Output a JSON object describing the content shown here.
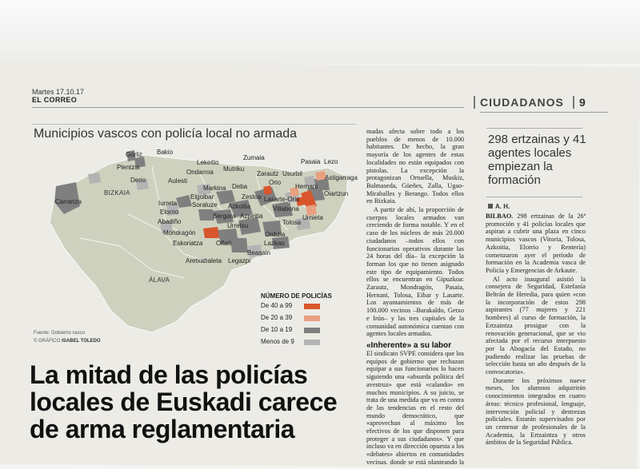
{
  "header": {
    "date": "Martes 17.10.17",
    "publication": "EL CORREO",
    "section": "CIUDADANOS",
    "page": "9"
  },
  "map": {
    "title": "Municipios vascos con policía local no armada",
    "regions": [
      "BIZKAIA",
      "ÁLAVA"
    ],
    "places": [
      "Gorliz",
      "Bakio",
      "Plentzia",
      "Derio",
      "Aulesti",
      "Lekeitio",
      "Zumaia",
      "Pasaia",
      "Lezo",
      "Mutriku",
      "Ondarroa",
      "Zarautz",
      "Usurbil",
      "Astigarraga",
      "Orio",
      "Carranza",
      "Markina",
      "Deba",
      "Hernani",
      "Oiartzun",
      "Elgoibar",
      "Zestoa",
      "Lasarte-Oria",
      "Iurreta",
      "Soraluze",
      "Azkoitia",
      "Villabona",
      "Elorrio",
      "Bergara",
      "Azpeitia",
      "Urnieta",
      "Abadiño",
      "Urretxu",
      "Tolosa",
      "Mondragón",
      "Ordizia",
      "Eskoriatza",
      "Oñati",
      "Lazkao",
      "Beasain",
      "Aretxabaleta",
      "Legazpi"
    ],
    "legend": {
      "title": "NÚMERO DE POLICÍAS",
      "items": [
        {
          "label": "De 40 a 99",
          "color": "#d9552c"
        },
        {
          "label": "De 20 a 39",
          "color": "#e8a080"
        },
        {
          "label": "De 10 a 19",
          "color": "#7f7f7f"
        },
        {
          "label": "Menos de 9",
          "color": "#b3b3b3"
        }
      ]
    },
    "source": "Fuente: Gobierno vasco",
    "credit_label": "GRÁFICO",
    "credit_name": "ISABEL TOLEDO"
  },
  "headline": "La mitad de las policías locales de Euskadi carece de arma reglamentaria",
  "article": {
    "p1": "madas afecta sobre todo a los pueblos de menos de 10.000 habitantes. De hecho, la gran mayoría de los agentes de estas localidades no están equipados con pistolas. La excepción la protagonizan Ortuella, Muskiz, Balmaseda, Güeñes, Zalla, Ugao-Miraballes y Berango. Todos ellos en Bizkaia.",
    "p2": "A partir de ahí, la proporción de cuerpos locales armados van creciendo de forma notable. Y en el caso de los núcleos de más 20.000 ciudadanos –todos ellos con funcionarios operativos durante las 24 horas del día– la excepción la forman los que no tienen asignado este tipo de equipamiento. Todos ellos se encuentran en Gipuzkoa: Zarautz, Mondragón, Pasaia, Hernani, Tolosa, Eibar y Lasarte. Los ayuntamientos de más de 100.000 vecinos –Barakaldo, Getxo e Irún– y las tres capitales de la comunidad autonómica cuentan con agentes locales armados.",
    "subhead": "«Inherente» a su labor",
    "p3": "El sindicato SVPE considera que los equipos de gobierno que rechazan equipar a sus funcionarios lo hacen siguiendo una «absurda política del avestruz» que está «calando» en muchos municipios. A su juicio, se trata de una medida que va en contra de las tendencias en el resto del mundo democrático, que «aprovechan al máximo los efectivos de los que disponen para proteger a sus ciudadanos». Y que incluso va en dirección opuesta a los «debates» abiertos en comunidades vecinas, donde se está planteando la necesidad de incorporar chalecos antibalas, pis-"
  },
  "sidebar": {
    "title": "298 ertzainas y 41 agentes locales empiezan la formación",
    "byline": "A. H.",
    "p1_lead": "BILBAO.",
    "p1": " 298 ertzainas de la 26ª promoción y 41 policías locales que aspiran a cubrir una plaza en cinco municipios vascos (Vitoria, Tolosa, Azkoitia, Elorrio y Rentería) comenzaron ayer el periodo de formación en la Academia vasca de Policía y Emergencias de Arkaute.",
    "p2": "Al acto inaugural asistió la consejera de Seguridad, Estefanía Beltrán de Heredia, para quien «con la incorporación de estos 298 aspirantes (77 mujeres y 221 hombres) al curso de formación, la Ertzaintza prosigue con la renovación generacional, que se vio afectada por el recurso interpuesto por la Abogacía del Estado, no pudiendo realizar las pruebas de selección hasta un año después de la convocatoria».",
    "p3": "Durante los próximos nueve meses, los alumnos adquirirán conocimientos integrados en cuatro áreas: técnico profesional, lenguaje, intervención policial y destrezas policiales. Estarán supervisados por un centenar de profesionales de la Academia, la Ertzaintza y otros ámbitos de la Seguridad Pública."
  }
}
